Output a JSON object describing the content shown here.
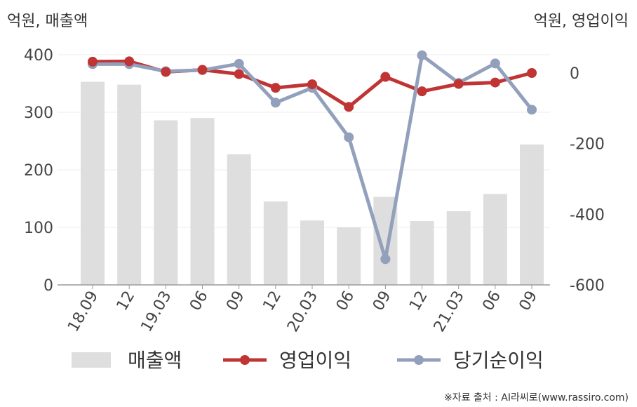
{
  "chart_data": {
    "type": "bar+line",
    "categories": [
      "18.09",
      "12",
      "19.03",
      "06",
      "09",
      "12",
      "20.03",
      "06",
      "09",
      "12",
      "21.03",
      "06",
      "09"
    ],
    "series": [
      {
        "name": "매출액",
        "type": "bar",
        "axis": "left",
        "color": "#dedede",
        "values": [
          353,
          348,
          286,
          290,
          227,
          145,
          112,
          100,
          153,
          111,
          128,
          158,
          244
        ]
      },
      {
        "name": "영업이익",
        "type": "line",
        "axis": "right",
        "color": "#c03434",
        "values": [
          32,
          33,
          3,
          9,
          -3,
          -42,
          -32,
          -96,
          -11,
          -52,
          -31,
          -27,
          0
        ]
      },
      {
        "name": "당기순이익",
        "type": "line",
        "axis": "right",
        "color": "#93a0bb",
        "values": [
          25,
          25,
          5,
          8,
          26,
          -84,
          -42,
          -182,
          -527,
          50,
          -28,
          27,
          -104
        ]
      }
    ],
    "left_unit": "억원, 매출액",
    "right_unit": "억원, 영업이익",
    "left_ylim": [
      0,
      400
    ],
    "left_ticks": [
      "0",
      "100",
      "200",
      "300",
      "400"
    ],
    "right_ylim": [
      -600,
      48
    ],
    "right_ticks": [
      "-600",
      "-400",
      "-200",
      "0"
    ],
    "grid": true,
    "legend_position": "bottom"
  },
  "source": "※자료 출처 : AI라씨로(www.rassiro.com)"
}
